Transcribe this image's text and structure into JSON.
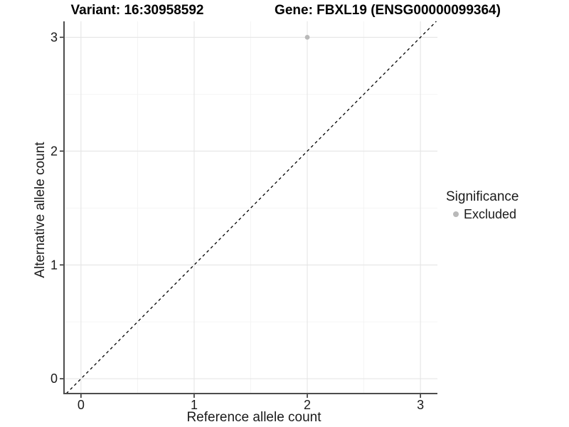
{
  "chart_data": {
    "type": "scatter",
    "title_left": "Variant: 16:30958592",
    "title_right": "Gene: FBXL19 (ENSG00000099364)",
    "xlabel": "Reference allele count",
    "ylabel": "Alternative allele count",
    "x_ticks": [
      0,
      1,
      2,
      3
    ],
    "y_ticks": [
      0,
      1,
      2,
      3
    ],
    "xlim": [
      -0.15,
      3.15
    ],
    "ylim": [
      -0.13,
      3.14
    ],
    "grid": {
      "major": true,
      "minor": true
    },
    "series": [
      {
        "name": "Excluded",
        "points": [
          {
            "x": 2,
            "y": 3
          }
        ]
      }
    ],
    "reference_line": {
      "kind": "identity",
      "slope": 1,
      "intercept": 0,
      "style": "dashed"
    },
    "legend": {
      "title": "Significance",
      "position": "right",
      "entries": [
        {
          "label": "Excluded",
          "color": "#b9b9b9"
        }
      ]
    },
    "colors": {
      "background": "#ffffff",
      "point": "#b9b9b9",
      "grid_major": "#e5e5e5",
      "grid_minor": "#f2f2f2",
      "axis_line": "#4d4d4d",
      "tick_mark": "#333333",
      "text": "#1a1a1a",
      "reference_line": "#000000"
    }
  }
}
